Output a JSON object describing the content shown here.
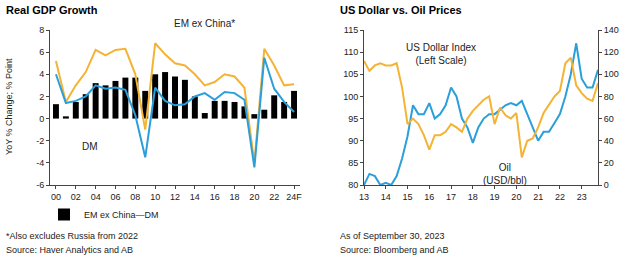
{
  "chart_data": [
    {
      "type": "bar",
      "title": "Real GDP Growth",
      "ylabel": "YoY % Change; % Point",
      "categories": [
        "00",
        null,
        "02",
        null,
        "04",
        null,
        "06",
        null,
        "08",
        null,
        "10",
        null,
        "12",
        null,
        "14",
        null,
        "16",
        null,
        "18",
        null,
        "20",
        null,
        "22",
        null,
        "24F"
      ],
      "series": [
        {
          "name": "EM ex China—DM",
          "type": "bar",
          "color": "#000000",
          "values": [
            1.3,
            0.2,
            1.5,
            2.2,
            3.2,
            3.0,
            3.4,
            3.7,
            3.7,
            2.5,
            4.0,
            4.2,
            3.8,
            3.5,
            2.0,
            0.5,
            1.6,
            1.6,
            1.5,
            1.1,
            0.4,
            0.8,
            2.1,
            1.5,
            2.5
          ]
        },
        {
          "name": "EM ex China*",
          "type": "line",
          "color": "#f5b335",
          "values": [
            5.2,
            1.5,
            3.0,
            4.2,
            6.2,
            5.7,
            6.2,
            6.3,
            4.0,
            -1.0,
            6.8,
            5.8,
            5.0,
            4.8,
            4.0,
            3.0,
            3.3,
            4.0,
            3.8,
            2.8,
            -4.0,
            6.3,
            4.8,
            3.0,
            3.1
          ]
        },
        {
          "name": "DM",
          "type": "line",
          "color": "#2b9fd9",
          "values": [
            4.0,
            1.4,
            1.6,
            2.0,
            3.0,
            2.7,
            2.8,
            2.6,
            0.3,
            -3.5,
            2.8,
            1.6,
            1.2,
            1.3,
            2.0,
            2.3,
            1.7,
            2.4,
            2.3,
            1.7,
            -4.4,
            5.5,
            2.7,
            1.5,
            0.6
          ]
        }
      ],
      "ylim": [
        -6,
        8
      ],
      "yticks": [
        -6,
        -4,
        -2,
        0,
        2,
        4,
        6,
        8
      ],
      "grid": false,
      "legend": "bottom left",
      "annotations": [
        "*Also excludes Russia from 2022",
        "Source: Haver Analytics and AB"
      ]
    },
    {
      "type": "line",
      "title": "US Dollar vs. Oil Prices",
      "x": [
        2013.0,
        2013.25,
        2013.5,
        2013.75,
        2014.0,
        2014.25,
        2014.5,
        2014.75,
        2015.0,
        2015.25,
        2015.5,
        2015.75,
        2016.0,
        2016.25,
        2016.5,
        2016.75,
        2017.0,
        2017.25,
        2017.5,
        2017.75,
        2018.0,
        2018.25,
        2018.5,
        2018.75,
        2019.0,
        2019.25,
        2019.5,
        2019.75,
        2020.0,
        2020.25,
        2020.5,
        2020.75,
        2021.0,
        2021.25,
        2021.5,
        2021.75,
        2022.0,
        2022.25,
        2022.5,
        2022.75,
        2023.0,
        2023.25,
        2023.5,
        2023.75
      ],
      "series": [
        {
          "name": "Oil (USD/bbl)",
          "color": "#f5b335",
          "axis": "y2",
          "values": [
            112,
            103,
            108,
            110,
            108,
            108,
            110,
            88,
            55,
            60,
            55,
            45,
            32,
            45,
            45,
            48,
            55,
            52,
            48,
            60,
            67,
            72,
            77,
            80,
            55,
            70,
            63,
            60,
            65,
            25,
            40,
            42,
            52,
            65,
            73,
            80,
            85,
            110,
            115,
            90,
            83,
            78,
            76,
            92
          ]
        },
        {
          "name": "US Dollar Index (Left Scale)",
          "color": "#2b9fd9",
          "values": [
            80,
            82.5,
            82,
            80,
            80.5,
            80,
            82,
            86,
            91,
            98,
            96,
            96,
            98.5,
            95,
            96,
            98,
            102,
            100,
            95,
            93,
            89.5,
            93,
            95,
            96,
            96,
            97,
            98,
            98.5,
            98,
            99,
            96,
            93,
            90,
            92,
            92,
            94,
            96,
            100,
            105,
            112,
            104,
            102,
            102,
            106
          ]
        }
      ],
      "xlim": [
        2013,
        2023.75
      ],
      "xticks": [
        {
          "value": 2013,
          "label": "13"
        },
        {
          "value": 2014,
          "label": "14"
        },
        {
          "value": 2015,
          "label": "15"
        },
        {
          "value": 2016,
          "label": "16"
        },
        {
          "value": 2017,
          "label": "17"
        },
        {
          "value": 2018,
          "label": "18"
        },
        {
          "value": 2019,
          "label": "19"
        },
        {
          "value": 2020,
          "label": "20"
        },
        {
          "value": 2021,
          "label": "21"
        },
        {
          "value": 2022,
          "label": "22"
        },
        {
          "value": 2023,
          "label": "23"
        }
      ],
      "ylim": [
        80,
        115
      ],
      "yticks": [
        80,
        85,
        90,
        95,
        100,
        105,
        110,
        115
      ],
      "y2lim": [
        0,
        140
      ],
      "y2ticks": [
        0,
        20,
        40,
        60,
        80,
        100,
        120,
        140
      ],
      "grid": false,
      "annotations": [
        "As of September 30, 2023",
        "Source: Bloomberg and AB"
      ]
    }
  ]
}
